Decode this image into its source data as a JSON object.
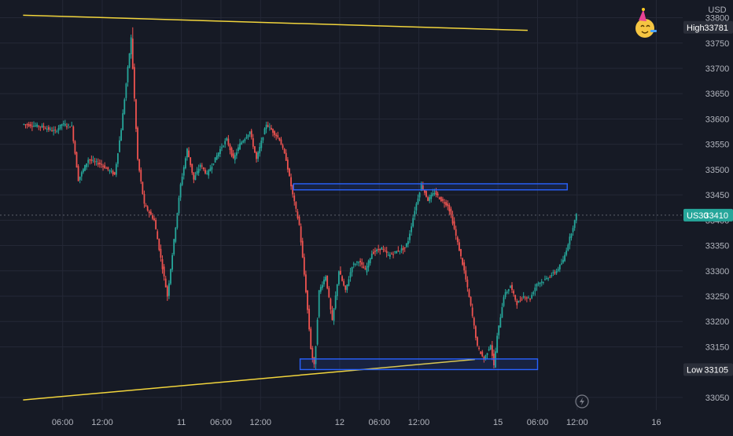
{
  "chart_data": {
    "type": "candlestick",
    "symbol": "US30",
    "currency_label": "USD",
    "last_price": 33410,
    "high": {
      "label": "High",
      "value": 33781
    },
    "low": {
      "label": "Low",
      "value": 33105
    },
    "ylim": [
      33025,
      33835
    ],
    "y_ticks": [
      33800,
      33750,
      33700,
      33650,
      33600,
      33550,
      33500,
      33450,
      33400,
      33350,
      33300,
      33250,
      33200,
      33150,
      33050
    ],
    "x_ticks": [
      {
        "label": "06:00",
        "hours": 6
      },
      {
        "label": "12:00",
        "hours": 12
      },
      {
        "label": "11",
        "hours": 24
      },
      {
        "label": "06:00",
        "hours": 30
      },
      {
        "label": "12:00",
        "hours": 36
      },
      {
        "label": "12",
        "hours": 48
      },
      {
        "label": "06:00",
        "hours": 54
      },
      {
        "label": "12:00",
        "hours": 60
      },
      {
        "label": "15",
        "hours": 72
      },
      {
        "label": "06:00",
        "hours": 78
      },
      {
        "label": "12:00",
        "hours": 84
      },
      {
        "label": "16",
        "hours": 96
      }
    ],
    "price_path": [
      [
        0,
        33590
      ],
      [
        3,
        33585
      ],
      [
        5,
        33575
      ],
      [
        6,
        33590
      ],
      [
        7.5,
        33585
      ],
      [
        8.5,
        33480
      ],
      [
        10,
        33520
      ],
      [
        12,
        33510
      ],
      [
        14,
        33490
      ],
      [
        15,
        33580
      ],
      [
        16.5,
        33760
      ],
      [
        17,
        33640
      ],
      [
        17.5,
        33520
      ],
      [
        18.5,
        33430
      ],
      [
        20,
        33400
      ],
      [
        22,
        33250
      ],
      [
        23,
        33360
      ],
      [
        24,
        33470
      ],
      [
        25,
        33540
      ],
      [
        26,
        33480
      ],
      [
        27,
        33510
      ],
      [
        28,
        33490
      ],
      [
        30,
        33540
      ],
      [
        31,
        33560
      ],
      [
        32,
        33520
      ],
      [
        33,
        33550
      ],
      [
        34.5,
        33575
      ],
      [
        35.5,
        33520
      ],
      [
        37,
        33590
      ],
      [
        38,
        33575
      ],
      [
        39,
        33560
      ],
      [
        40,
        33520
      ],
      [
        41,
        33450
      ],
      [
        42,
        33390
      ],
      [
        43,
        33260
      ],
      [
        43.8,
        33140
      ],
      [
        44.3,
        33110
      ],
      [
        45,
        33260
      ],
      [
        46,
        33290
      ],
      [
        47,
        33200
      ],
      [
        48,
        33300
      ],
      [
        49,
        33260
      ],
      [
        50,
        33310
      ],
      [
        51,
        33320
      ],
      [
        52,
        33300
      ],
      [
        53,
        33335
      ],
      [
        54.5,
        33345
      ],
      [
        55.5,
        33330
      ],
      [
        57,
        33340
      ],
      [
        58,
        33345
      ],
      [
        58.5,
        33360
      ],
      [
        59.5,
        33420
      ],
      [
        60.5,
        33470
      ],
      [
        61.5,
        33440
      ],
      [
        62.5,
        33455
      ],
      [
        63.5,
        33440
      ],
      [
        64.5,
        33430
      ],
      [
        65,
        33410
      ],
      [
        66,
        33355
      ],
      [
        67,
        33300
      ],
      [
        68,
        33230
      ],
      [
        69,
        33150
      ],
      [
        70,
        33125
      ],
      [
        71,
        33155
      ],
      [
        71.5,
        33112
      ],
      [
        72,
        33170
      ],
      [
        73,
        33250
      ],
      [
        74,
        33270
      ],
      [
        75,
        33235
      ],
      [
        76,
        33250
      ],
      [
        77,
        33245
      ],
      [
        78,
        33275
      ],
      [
        79,
        33280
      ],
      [
        80,
        33290
      ],
      [
        81,
        33300
      ],
      [
        82,
        33320
      ],
      [
        83,
        33365
      ],
      [
        84,
        33410
      ]
    ],
    "trendlines": [
      {
        "name": "upper",
        "points": [
          [
            0,
            33805
          ],
          [
            76.5,
            33775
          ]
        ]
      },
      {
        "name": "lower",
        "points": [
          [
            0,
            33045
          ],
          [
            68.5,
            33125
          ]
        ]
      }
    ],
    "zones": [
      {
        "name": "resistance",
        "t_start": 41,
        "t_end": 82.5,
        "price_low": 33460,
        "price_high": 33472
      },
      {
        "name": "support",
        "t_start": 42,
        "t_end": 78,
        "price_low": 33105,
        "price_high": 33126
      }
    ],
    "colors": {
      "background": "#161a25",
      "grid": "#242836",
      "up": "#26a69a",
      "down": "#ef5350",
      "trendline": "#f2d53c",
      "zone": "#2962ff",
      "axis_text": "#b2b5be",
      "badge_bg": "#2a2e39",
      "last_price_badge": "#26a69a",
      "crosshair": "#5d606b"
    }
  },
  "icons": {
    "celebration": "party-face-icon",
    "replay": "lightning-icon"
  }
}
